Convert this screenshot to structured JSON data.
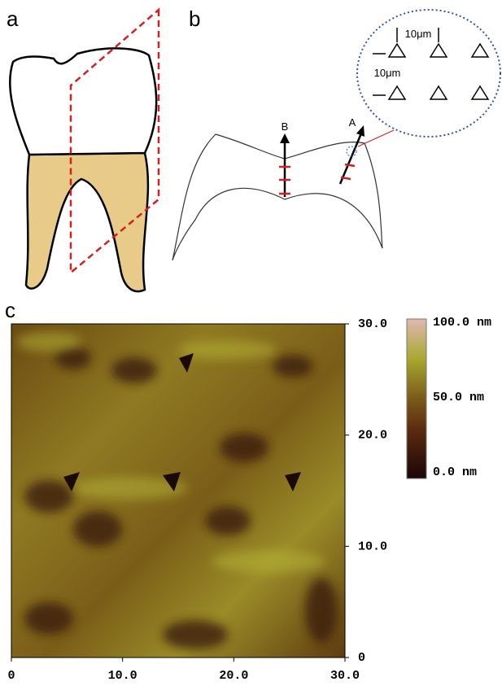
{
  "panels": {
    "a": {
      "label": "a"
    },
    "b": {
      "label": "b",
      "arrow_labels": [
        "B",
        "A"
      ],
      "scale_labels": [
        "10μm",
        "10μm"
      ]
    },
    "c": {
      "label": "c",
      "xlim": [
        0,
        30
      ],
      "ylim": [
        0,
        30
      ],
      "xticks": [
        0,
        {
          "value": 10,
          "label": "10.0"
        },
        {
          "value": 20,
          "label": "20.0"
        },
        {
          "value": 30,
          "label": "30.0"
        }
      ],
      "yticks": [
        0,
        {
          "value": 10,
          "label": "10.0"
        },
        {
          "value": 20,
          "label": "20.0"
        },
        {
          "value": 30,
          "label": "30.0"
        }
      ],
      "colorbar": {
        "lim": [
          0,
          100
        ],
        "ticks": [
          {
            "value": 100,
            "label": "100.0 nm"
          },
          {
            "value": 50,
            "label": "50.0 nm"
          },
          {
            "value": 0,
            "label": "0.0 nm"
          }
        ]
      }
    }
  }
}
